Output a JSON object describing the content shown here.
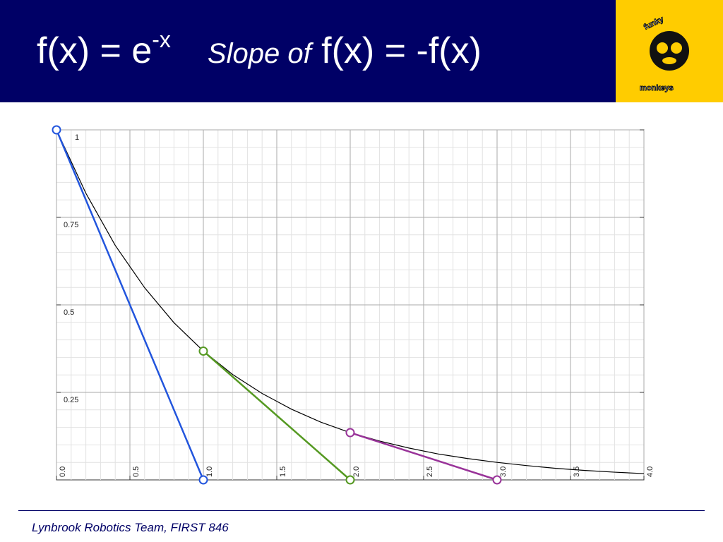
{
  "header": {
    "title_base": "f(x) = e",
    "title_exponent": "-x",
    "slope_label": "Slope of",
    "slope_expr": "f(x) = -f(x)"
  },
  "logo": {
    "top": "funky",
    "bottom": "monkeys"
  },
  "footer": "Lynbrook Robotics Team, FIRST 846",
  "chart_data": {
    "type": "line",
    "xlim": [
      0,
      4
    ],
    "ylim": [
      0,
      1
    ],
    "xticks": [
      {
        "value": 0,
        "label": "0.0"
      },
      0.5,
      {
        "value": 1,
        "label": "1.0"
      },
      1.5,
      {
        "value": 2,
        "label": "2.0"
      },
      2.5,
      {
        "value": 3,
        "label": "3.0"
      },
      3.5,
      {
        "value": 4,
        "label": "4.0"
      }
    ],
    "yticks": [
      0.25,
      0.5,
      0.75,
      1
    ],
    "minor_xticks": [
      0.1,
      0.2,
      0.3,
      0.4,
      0.6,
      0.7,
      0.8,
      0.9,
      1.1,
      1.2,
      1.3,
      1.4,
      1.6,
      1.7,
      1.8,
      1.9,
      2.1,
      2.2,
      2.3,
      2.4,
      2.6,
      2.7,
      2.8,
      2.9,
      3.1,
      3.2,
      3.3,
      3.4,
      3.6,
      3.7,
      3.8,
      3.9
    ],
    "minor_yticks": [
      0.05,
      0.1,
      0.15,
      0.2,
      0.3,
      0.35,
      0.4,
      0.45,
      0.55,
      0.6,
      0.65,
      0.7,
      0.8,
      0.85,
      0.9,
      0.95
    ],
    "grid": true,
    "series": [
      {
        "color": "#000000",
        "markers": false,
        "x": [
          0,
          0.2,
          0.4,
          0.6,
          0.8,
          1.0,
          1.2,
          1.4,
          1.6,
          1.8,
          2.0,
          2.2,
          2.4,
          2.6,
          2.8,
          3.0,
          3.2,
          3.4,
          3.6,
          3.8,
          4.0
        ],
        "values": [
          1,
          0.819,
          0.67,
          0.549,
          0.449,
          0.368,
          0.301,
          0.247,
          0.202,
          0.165,
          0.135,
          0.111,
          0.091,
          0.074,
          0.061,
          0.05,
          0.041,
          0.033,
          0.027,
          0.022,
          0.018
        ]
      },
      {
        "color": "#2255dd",
        "markers": true,
        "x": [
          0,
          1
        ],
        "values": [
          1,
          0
        ]
      },
      {
        "color": "#559922",
        "markers": true,
        "x": [
          1,
          2
        ],
        "values": [
          0.368,
          0
        ]
      },
      {
        "color": "#993399",
        "markers": true,
        "x": [
          2,
          3
        ],
        "values": [
          0.135,
          0
        ]
      }
    ]
  }
}
